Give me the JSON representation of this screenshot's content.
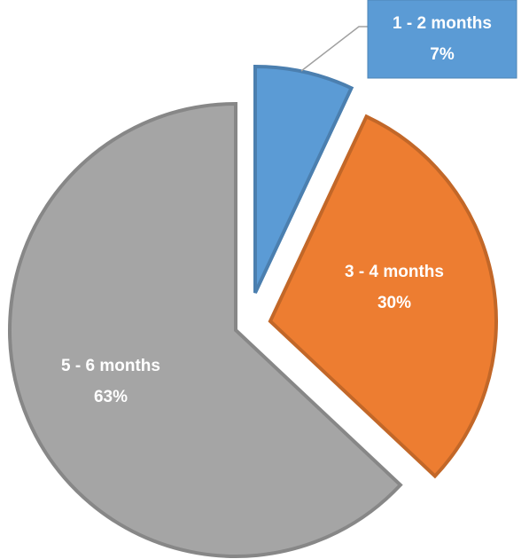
{
  "chart_data": {
    "type": "pie",
    "categories": [
      "1 - 2 months",
      "3 - 4 months",
      "5  - 6 months"
    ],
    "values": [
      7,
      30,
      63
    ],
    "value_labels": [
      "7%",
      "30%",
      "63%"
    ],
    "colors": [
      "#5b9bd5",
      "#ed7d31",
      "#a5a5a5"
    ]
  }
}
